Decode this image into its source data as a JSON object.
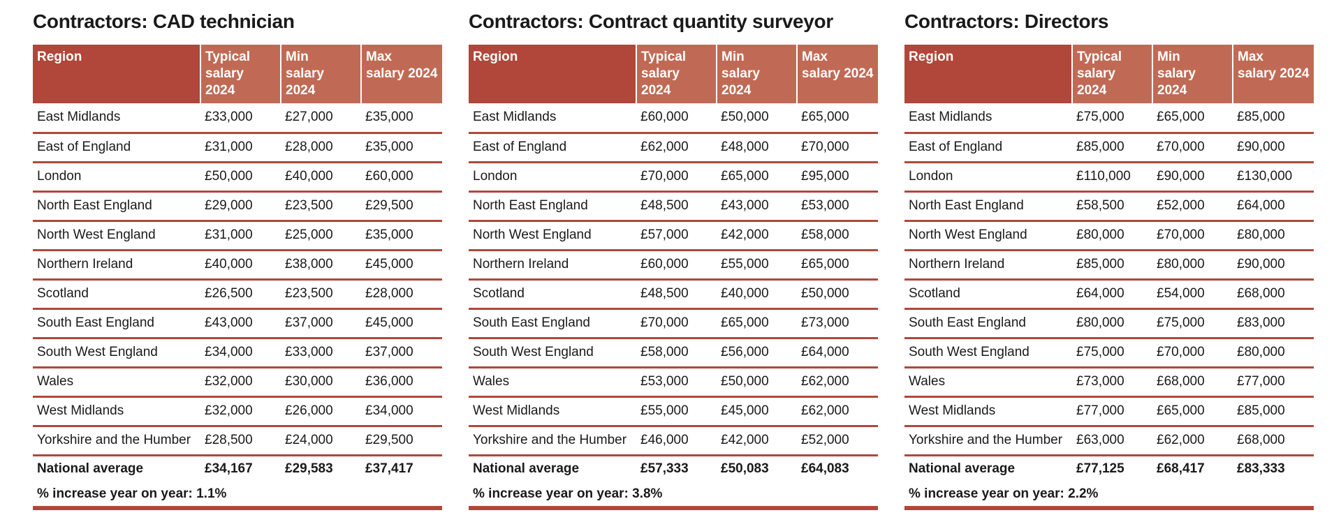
{
  "panels": [
    {
      "title": "Contractors: CAD technician",
      "headers": [
        "Region",
        "Typical salary 2024",
        "Min salary 2024",
        "Max salary 2024"
      ],
      "header_lines": [
        [
          "Region"
        ],
        [
          "Typical",
          "salary 2024"
        ],
        [
          "Min",
          "salary 2024"
        ],
        [
          "Max",
          "salary 2024"
        ]
      ],
      "rows": [
        [
          "East Midlands",
          "£33,000",
          "£27,000",
          "£35,000"
        ],
        [
          "East of England",
          "£31,000",
          "£28,000",
          "£35,000"
        ],
        [
          "London",
          "£50,000",
          "£40,000",
          "£60,000"
        ],
        [
          "North East England",
          "£29,000",
          "£23,500",
          "£29,500"
        ],
        [
          "North West England",
          "£31,000",
          "£25,000",
          "£35,000"
        ],
        [
          "Northern Ireland",
          "£40,000",
          "£38,000",
          "£45,000"
        ],
        [
          "Scotland",
          "£26,500",
          "£23,500",
          "£28,000"
        ],
        [
          "South East England",
          "£43,000",
          "£37,000",
          "£45,000"
        ],
        [
          "South West England",
          "£34,000",
          "£33,000",
          "£37,000"
        ],
        [
          "Wales",
          "£32,000",
          "£30,000",
          "£36,000"
        ],
        [
          "West Midlands",
          "£32,000",
          "£26,000",
          "£34,000"
        ],
        [
          "Yorkshire and the Humber",
          "£28,500",
          "£24,000",
          "£29,500"
        ]
      ],
      "average": [
        "National average",
        "£34,167",
        "£29,583",
        "£37,417"
      ],
      "increase": "% increase year on year: 1.1%"
    },
    {
      "title": "Contractors: Contract quantity surveyor",
      "headers": [
        "Region",
        "Typical salary 2024",
        "Min salary 2024",
        "Max salary 2024"
      ],
      "header_lines": [
        [
          "Region"
        ],
        [
          "Typical",
          "salary 2024"
        ],
        [
          "Min",
          "salary 2024"
        ],
        [
          "Max",
          "salary 2024"
        ]
      ],
      "rows": [
        [
          "East Midlands",
          "£60,000",
          "£50,000",
          "£65,000"
        ],
        [
          "East of England",
          "£62,000",
          "£48,000",
          "£70,000"
        ],
        [
          "London",
          "£70,000",
          "£65,000",
          "£95,000"
        ],
        [
          "North East England",
          "£48,500",
          "£43,000",
          "£53,000"
        ],
        [
          "North West England",
          "£57,000",
          "£42,000",
          "£58,000"
        ],
        [
          "Northern Ireland",
          "£60,000",
          "£55,000",
          "£65,000"
        ],
        [
          "Scotland",
          "£48,500",
          "£40,000",
          "£50,000"
        ],
        [
          "South East England",
          "£70,000",
          "£65,000",
          "£73,000"
        ],
        [
          "South West England",
          "£58,000",
          "£56,000",
          "£64,000"
        ],
        [
          "Wales",
          "£53,000",
          "£50,000",
          "£62,000"
        ],
        [
          "West Midlands",
          "£55,000",
          "£45,000",
          "£62,000"
        ],
        [
          "Yorkshire and the Humber",
          "£46,000",
          "£42,000",
          "£52,000"
        ]
      ],
      "average": [
        "National average",
        "£57,333",
        "£50,083",
        "£64,083"
      ],
      "increase": "% increase year on year: 3.8%"
    },
    {
      "title": "Contractors: Directors",
      "headers": [
        "Region",
        "Typical salary 2024",
        "Min salary 2024",
        "Max salary 2024"
      ],
      "header_lines": [
        [
          "Region"
        ],
        [
          "Typical",
          "salary 2024"
        ],
        [
          "Min",
          "salary 2024"
        ],
        [
          "Max",
          "salary 2024"
        ]
      ],
      "rows": [
        [
          "East Midlands",
          "£75,000",
          "£65,000",
          "£85,000"
        ],
        [
          "East of England",
          "£85,000",
          "£70,000",
          "£90,000"
        ],
        [
          "London",
          "£110,000",
          "£90,000",
          "£130,000"
        ],
        [
          "North East England",
          "£58,500",
          "£52,000",
          "£64,000"
        ],
        [
          "North West England",
          "£80,000",
          "£70,000",
          "£80,000"
        ],
        [
          "Northern Ireland",
          "£85,000",
          "£80,000",
          "£90,000"
        ],
        [
          "Scotland",
          "£64,000",
          "£54,000",
          "£68,000"
        ],
        [
          "South East England",
          "£80,000",
          "£75,000",
          "£83,000"
        ],
        [
          "South West England",
          "£75,000",
          "£70,000",
          "£80,000"
        ],
        [
          "Wales",
          "£73,000",
          "£68,000",
          "£77,000"
        ],
        [
          "West Midlands",
          "£77,000",
          "£65,000",
          "£85,000"
        ],
        [
          "Yorkshire and the Humber",
          "£63,000",
          "£62,000",
          "£68,000"
        ]
      ],
      "average": [
        "National average",
        "£77,125",
        "£68,417",
        "£83,333"
      ],
      "increase": "% increase year on year: 2.2%"
    }
  ],
  "colors": {
    "header_region": "#b0473a",
    "header_value": "#c06a55",
    "rule": "#b0473a"
  }
}
